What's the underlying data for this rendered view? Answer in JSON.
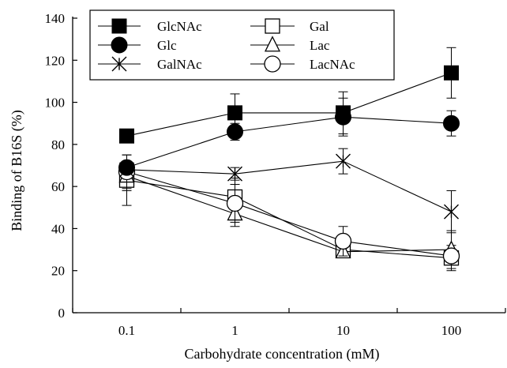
{
  "chart_data": {
    "type": "line",
    "xlabel": "Carbohydrate concentration (mM)",
    "ylabel": "Binding of B16S (%)",
    "x_scale": "log",
    "categories": [
      "0.1",
      "1",
      "10",
      "100"
    ],
    "x": [
      0.1,
      1,
      10,
      100
    ],
    "ylim": [
      0,
      140
    ],
    "yticks": [
      0,
      20,
      40,
      60,
      80,
      100,
      120,
      140
    ],
    "grid": false,
    "legend_position": "top-left",
    "series": [
      {
        "name": "GlcNAc",
        "marker": "filled-square",
        "values": [
          84,
          95,
          95,
          114
        ],
        "errors": [
          0,
          9,
          10,
          12
        ]
      },
      {
        "name": "Glc",
        "marker": "filled-circle",
        "values": [
          69,
          86,
          93,
          90
        ],
        "errors": [
          0,
          4,
          9,
          6
        ]
      },
      {
        "name": "GalNAc",
        "marker": "asterisk",
        "values": [
          68,
          66,
          72,
          48
        ],
        "errors": [
          0,
          3,
          6,
          10
        ]
      },
      {
        "name": "Gal",
        "marker": "open-square",
        "values": [
          63,
          55,
          30,
          26
        ],
        "errors": [
          12,
          9,
          0,
          6
        ]
      },
      {
        "name": "Lac",
        "marker": "open-triangle",
        "values": [
          65,
          47,
          29,
          30
        ],
        "errors": [
          7,
          6,
          0,
          9
        ]
      },
      {
        "name": "LacNAc",
        "marker": "open-circle",
        "values": [
          67,
          52,
          34,
          27
        ],
        "errors": [
          8,
          9,
          7,
          0
        ]
      }
    ]
  }
}
